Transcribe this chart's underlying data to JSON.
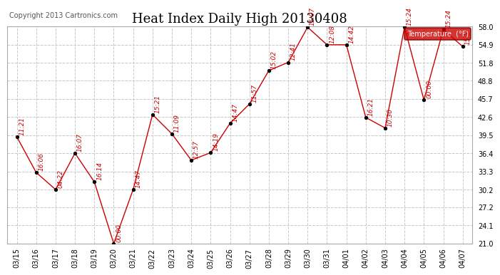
{
  "title": "Heat Index Daily High 20130408",
  "copyright": "Copyright 2013 Cartronics.com",
  "legend_label": "Temperature  (°F)",
  "dates": [
    "03/15",
    "03/16",
    "03/17",
    "03/18",
    "03/19",
    "03/20",
    "03/21",
    "03/22",
    "03/23",
    "03/24",
    "03/25",
    "03/26",
    "03/27",
    "03/28",
    "03/29",
    "03/30",
    "03/31",
    "04/01",
    "04/02",
    "04/03",
    "04/04",
    "04/05",
    "04/06",
    "04/07"
  ],
  "values": [
    39.2,
    33.1,
    30.2,
    36.4,
    31.5,
    21.0,
    30.2,
    43.0,
    39.7,
    35.2,
    36.5,
    41.5,
    44.8,
    50.5,
    51.9,
    57.9,
    54.9,
    54.9,
    42.5,
    40.7,
    57.9,
    45.5,
    57.5,
    54.6
  ],
  "time_labels": [
    "11:21",
    "16:06",
    "04:22",
    "16:07",
    "16:14",
    "00:00",
    "14:47",
    "15:21",
    "11:09",
    "12:57",
    "14:19",
    "14:47",
    "11:57",
    "15:02",
    "12:41",
    "15:07",
    "12:08",
    "14:42",
    "16:21",
    "10:30",
    "15:24",
    "00:00",
    "15:24",
    "15:1"
  ],
  "line_color": "#cc0000",
  "point_color": "#000000",
  "label_color": "#cc0000",
  "bg_color": "#ffffff",
  "grid_color": "#c8c8c8",
  "ylim_min": 21.0,
  "ylim_max": 58.0,
  "yticks": [
    21.0,
    24.1,
    27.2,
    30.2,
    33.3,
    36.4,
    39.5,
    42.6,
    45.7,
    48.8,
    51.8,
    54.9,
    58.0
  ],
  "title_fontsize": 13,
  "tick_fontsize": 7,
  "label_fontsize": 6.5,
  "copyright_fontsize": 7
}
